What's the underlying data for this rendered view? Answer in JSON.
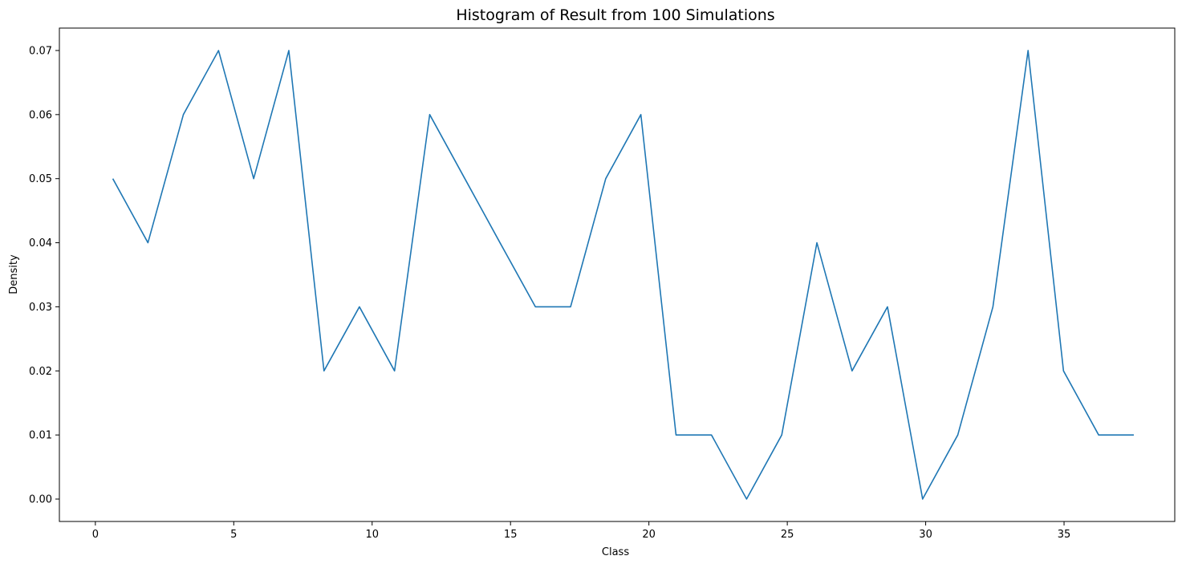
{
  "chart_data": {
    "type": "line",
    "title": "Histogram of Result from 100 Simulations",
    "xlabel": "Class",
    "ylabel": "Density",
    "xlim": [
      -1.3,
      39.0
    ],
    "ylim": [
      -0.0035,
      0.0735
    ],
    "xticks": [
      0,
      5,
      10,
      15,
      20,
      25,
      30,
      35
    ],
    "xtick_labels": [
      "0",
      "5",
      "10",
      "15",
      "20",
      "25",
      "30",
      "35"
    ],
    "yticks": [
      0.0,
      0.01,
      0.02,
      0.03,
      0.04,
      0.05,
      0.06,
      0.07
    ],
    "ytick_labels": [
      "0.00",
      "0.01",
      "0.02",
      "0.03",
      "0.04",
      "0.05",
      "0.06",
      "0.07"
    ],
    "grid": false,
    "series": [
      {
        "color": "#1f77b4",
        "x": [
          0.63,
          1.9,
          3.18,
          4.45,
          5.72,
          6.99,
          8.26,
          9.54,
          10.81,
          12.08,
          13.35,
          14.62,
          15.9,
          17.17,
          18.44,
          19.71,
          20.98,
          22.26,
          23.53,
          24.8,
          26.07,
          27.34,
          28.62,
          29.89,
          31.16,
          32.43,
          33.7,
          34.98,
          36.25,
          37.52
        ],
        "y": [
          0.05,
          0.04,
          0.06,
          0.07,
          0.05,
          0.07,
          0.02,
          0.03,
          0.02,
          0.06,
          0.05,
          0.04,
          0.03,
          0.03,
          0.05,
          0.06,
          0.01,
          0.01,
          0.0,
          0.01,
          0.04,
          0.02,
          0.03,
          0.0,
          0.01,
          0.03,
          0.07,
          0.02,
          0.01,
          0.01
        ]
      }
    ]
  }
}
